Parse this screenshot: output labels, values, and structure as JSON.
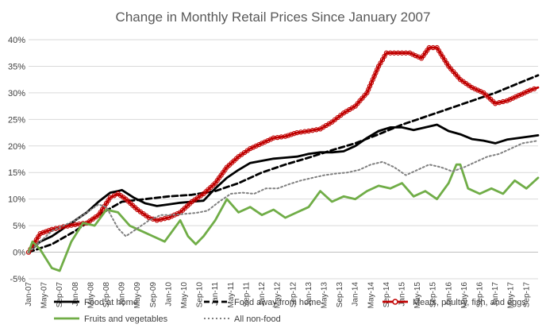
{
  "chart_data": {
    "type": "line",
    "title": "Change in Monthly Retail Prices Since January 2007",
    "xlabel": "",
    "ylabel": "",
    "ylim": [
      -0.05,
      0.4
    ],
    "y_ticks": [
      "-5%",
      "0%",
      "5%",
      "10%",
      "15%",
      "20%",
      "25%",
      "30%",
      "35%",
      "40%"
    ],
    "x_start": "Jan-07",
    "x_end": "Dec-17",
    "x_ticks": [
      "Jan-07",
      "May-07",
      "Sep-07",
      "Jan-08",
      "May-08",
      "Sep-08",
      "Jan-09",
      "May-09",
      "Sep-09",
      "Jan-10",
      "May-10",
      "Sep-10",
      "Jan-11",
      "May-11",
      "Sep-11",
      "Jan-12",
      "May-12",
      "Sep-12",
      "Jan-13",
      "May-13",
      "Sep-13",
      "Jan-14",
      "May-14",
      "Sep-14",
      "Jan-15",
      "May-15",
      "Sep-15",
      "Jan-16",
      "May-16",
      "Sep-16",
      "Jan-17",
      "May-17",
      "Sep-17"
    ],
    "grid": true,
    "legend_position": "bottom",
    "series": [
      {
        "name": "Food at home",
        "color": "#000000",
        "style": "solid",
        "values": [
          [
            "Jan-07",
            0.0
          ],
          [
            "Apr-07",
            0.02
          ],
          [
            "Jul-07",
            0.03
          ],
          [
            "Oct-07",
            0.045
          ],
          [
            "Jan-08",
            0.06
          ],
          [
            "Apr-08",
            0.075
          ],
          [
            "Jul-08",
            0.095
          ],
          [
            "Oct-08",
            0.112
          ],
          [
            "Dec-08",
            0.115
          ],
          [
            "Jan-09",
            0.117
          ],
          [
            "Apr-09",
            0.103
          ],
          [
            "Jul-09",
            0.092
          ],
          [
            "Oct-09",
            0.087
          ],
          [
            "Jan-10",
            0.09
          ],
          [
            "Apr-10",
            0.093
          ],
          [
            "Jul-10",
            0.095
          ],
          [
            "Oct-10",
            0.097
          ],
          [
            "Jan-11",
            0.12
          ],
          [
            "Apr-11",
            0.14
          ],
          [
            "Jul-11",
            0.155
          ],
          [
            "Oct-11",
            0.168
          ],
          [
            "Jan-12",
            0.172
          ],
          [
            "Apr-12",
            0.176
          ],
          [
            "Jul-12",
            0.178
          ],
          [
            "Oct-12",
            0.18
          ],
          [
            "Jan-13",
            0.185
          ],
          [
            "Apr-13",
            0.188
          ],
          [
            "Jul-13",
            0.188
          ],
          [
            "Oct-13",
            0.19
          ],
          [
            "Jan-14",
            0.2
          ],
          [
            "Apr-14",
            0.215
          ],
          [
            "Jul-14",
            0.228
          ],
          [
            "Oct-14",
            0.235
          ],
          [
            "Jan-15",
            0.235
          ],
          [
            "Apr-15",
            0.23
          ],
          [
            "Jul-15",
            0.235
          ],
          [
            "Oct-15",
            0.24
          ],
          [
            "Jan-16",
            0.228
          ],
          [
            "Apr-16",
            0.222
          ],
          [
            "Jul-16",
            0.213
          ],
          [
            "Oct-16",
            0.21
          ],
          [
            "Jan-17",
            0.205
          ],
          [
            "Apr-17",
            0.212
          ],
          [
            "Jul-17",
            0.215
          ],
          [
            "Oct-17",
            0.218
          ],
          [
            "Dec-17",
            0.22
          ]
        ]
      },
      {
        "name": "Food away from home",
        "color": "#000000",
        "style": "dashed",
        "values": [
          [
            "Jan-07",
            0.0
          ],
          [
            "Jul-07",
            0.015
          ],
          [
            "Jan-08",
            0.04
          ],
          [
            "Jul-08",
            0.07
          ],
          [
            "Jan-09",
            0.095
          ],
          [
            "Jul-09",
            0.1
          ],
          [
            "Jan-10",
            0.105
          ],
          [
            "Jul-10",
            0.108
          ],
          [
            "Jan-11",
            0.115
          ],
          [
            "Jul-11",
            0.13
          ],
          [
            "Jan-12",
            0.15
          ],
          [
            "Jul-12",
            0.165
          ],
          [
            "Jan-13",
            0.178
          ],
          [
            "Jul-13",
            0.192
          ],
          [
            "Jan-14",
            0.205
          ],
          [
            "Jul-14",
            0.222
          ],
          [
            "Jan-15",
            0.24
          ],
          [
            "Jul-15",
            0.255
          ],
          [
            "Jan-16",
            0.27
          ],
          [
            "Jul-16",
            0.285
          ],
          [
            "Jan-17",
            0.3
          ],
          [
            "Jul-17",
            0.318
          ],
          [
            "Dec-17",
            0.333
          ]
        ]
      },
      {
        "name": "Meats, poultry, fish, and eggs",
        "color": "#c00000",
        "style": "solid-markers",
        "values": [
          [
            "Jan-07",
            0.0
          ],
          [
            "Apr-07",
            0.035
          ],
          [
            "Jul-07",
            0.043
          ],
          [
            "Oct-07",
            0.048
          ],
          [
            "Jan-08",
            0.052
          ],
          [
            "Apr-08",
            0.055
          ],
          [
            "Jul-08",
            0.07
          ],
          [
            "Oct-08",
            0.103
          ],
          [
            "Dec-08",
            0.11
          ],
          [
            "Feb-09",
            0.1
          ],
          [
            "May-09",
            0.08
          ],
          [
            "Aug-09",
            0.065
          ],
          [
            "Oct-09",
            0.06
          ],
          [
            "Jan-10",
            0.065
          ],
          [
            "Apr-10",
            0.075
          ],
          [
            "Jul-10",
            0.095
          ],
          [
            "Oct-10",
            0.11
          ],
          [
            "Jan-11",
            0.13
          ],
          [
            "Apr-11",
            0.16
          ],
          [
            "Jul-11",
            0.18
          ],
          [
            "Oct-11",
            0.195
          ],
          [
            "Jan-12",
            0.205
          ],
          [
            "Apr-12",
            0.215
          ],
          [
            "Jul-12",
            0.218
          ],
          [
            "Oct-12",
            0.225
          ],
          [
            "Jan-13",
            0.228
          ],
          [
            "Apr-13",
            0.232
          ],
          [
            "Jul-13",
            0.245
          ],
          [
            "Oct-13",
            0.262
          ],
          [
            "Jan-14",
            0.275
          ],
          [
            "Apr-14",
            0.3
          ],
          [
            "Jul-14",
            0.35
          ],
          [
            "Sep-14",
            0.375
          ],
          [
            "Dec-14",
            0.375
          ],
          [
            "Mar-15",
            0.375
          ],
          [
            "Jun-15",
            0.365
          ],
          [
            "Aug-15",
            0.385
          ],
          [
            "Oct-15",
            0.385
          ],
          [
            "Jan-16",
            0.35
          ],
          [
            "Apr-16",
            0.325
          ],
          [
            "Jul-16",
            0.31
          ],
          [
            "Oct-16",
            0.3
          ],
          [
            "Jan-17",
            0.28
          ],
          [
            "Apr-17",
            0.285
          ],
          [
            "Jul-17",
            0.295
          ],
          [
            "Oct-17",
            0.305
          ],
          [
            "Dec-17",
            0.31
          ]
        ]
      },
      {
        "name": "Fruits and vegetables",
        "color": "#70ad47",
        "style": "solid",
        "values": [
          [
            "Jan-07",
            0.0
          ],
          [
            "Feb-07",
            0.02
          ],
          [
            "Apr-07",
            0.005
          ],
          [
            "Jul-07",
            -0.03
          ],
          [
            "Sep-07",
            -0.035
          ],
          [
            "Dec-07",
            0.02
          ],
          [
            "Mar-08",
            0.055
          ],
          [
            "Jun-08",
            0.05
          ],
          [
            "Sep-08",
            0.08
          ],
          [
            "Dec-08",
            0.075
          ],
          [
            "Mar-09",
            0.05
          ],
          [
            "Jun-09",
            0.04
          ],
          [
            "Sep-09",
            0.03
          ],
          [
            "Dec-09",
            0.02
          ],
          [
            "Feb-10",
            0.04
          ],
          [
            "Apr-10",
            0.06
          ],
          [
            "Jun-10",
            0.03
          ],
          [
            "Aug-10",
            0.015
          ],
          [
            "Oct-10",
            0.03
          ],
          [
            "Jan-11",
            0.06
          ],
          [
            "Apr-11",
            0.1
          ],
          [
            "Jul-11",
            0.075
          ],
          [
            "Oct-11",
            0.085
          ],
          [
            "Jan-12",
            0.07
          ],
          [
            "Apr-12",
            0.08
          ],
          [
            "Jul-12",
            0.065
          ],
          [
            "Oct-12",
            0.075
          ],
          [
            "Jan-13",
            0.085
          ],
          [
            "Apr-13",
            0.115
          ],
          [
            "Jul-13",
            0.095
          ],
          [
            "Oct-13",
            0.105
          ],
          [
            "Jan-14",
            0.1
          ],
          [
            "Apr-14",
            0.115
          ],
          [
            "Jul-14",
            0.125
          ],
          [
            "Oct-14",
            0.12
          ],
          [
            "Jan-15",
            0.13
          ],
          [
            "Apr-15",
            0.105
          ],
          [
            "Jul-15",
            0.115
          ],
          [
            "Oct-15",
            0.1
          ],
          [
            "Jan-16",
            0.13
          ],
          [
            "Mar-16",
            0.165
          ],
          [
            "Apr-16",
            0.165
          ],
          [
            "Jun-16",
            0.12
          ],
          [
            "Sep-16",
            0.11
          ],
          [
            "Dec-16",
            0.12
          ],
          [
            "Mar-17",
            0.11
          ],
          [
            "Jun-17",
            0.135
          ],
          [
            "Sep-17",
            0.12
          ],
          [
            "Dec-17",
            0.14
          ]
        ]
      },
      {
        "name": "All non-food",
        "color": "#808080",
        "style": "dotted",
        "values": [
          [
            "Jan-07",
            0.0
          ],
          [
            "Apr-07",
            0.02
          ],
          [
            "Jul-07",
            0.04
          ],
          [
            "Oct-07",
            0.05
          ],
          [
            "Jan-08",
            0.06
          ],
          [
            "Apr-08",
            0.075
          ],
          [
            "Jul-08",
            0.09
          ],
          [
            "Sep-08",
            0.085
          ],
          [
            "Dec-08",
            0.045
          ],
          [
            "Feb-09",
            0.03
          ],
          [
            "May-09",
            0.045
          ],
          [
            "Aug-09",
            0.06
          ],
          [
            "Nov-09",
            0.07
          ],
          [
            "Feb-10",
            0.07
          ],
          [
            "May-10",
            0.072
          ],
          [
            "Aug-10",
            0.074
          ],
          [
            "Nov-10",
            0.078
          ],
          [
            "Feb-11",
            0.095
          ],
          [
            "May-11",
            0.11
          ],
          [
            "Aug-11",
            0.112
          ],
          [
            "Nov-11",
            0.11
          ],
          [
            "Feb-12",
            0.12
          ],
          [
            "May-12",
            0.12
          ],
          [
            "Aug-12",
            0.128
          ],
          [
            "Nov-12",
            0.135
          ],
          [
            "Feb-13",
            0.14
          ],
          [
            "May-13",
            0.145
          ],
          [
            "Aug-13",
            0.148
          ],
          [
            "Nov-13",
            0.15
          ],
          [
            "Feb-14",
            0.155
          ],
          [
            "May-14",
            0.165
          ],
          [
            "Aug-14",
            0.17
          ],
          [
            "Nov-14",
            0.16
          ],
          [
            "Feb-15",
            0.145
          ],
          [
            "May-15",
            0.155
          ],
          [
            "Aug-15",
            0.165
          ],
          [
            "Nov-15",
            0.16
          ],
          [
            "Feb-16",
            0.152
          ],
          [
            "May-16",
            0.16
          ],
          [
            "Aug-16",
            0.17
          ],
          [
            "Nov-16",
            0.18
          ],
          [
            "Feb-17",
            0.185
          ],
          [
            "May-17",
            0.195
          ],
          [
            "Aug-17",
            0.205
          ],
          [
            "Dec-17",
            0.21
          ]
        ]
      }
    ]
  }
}
